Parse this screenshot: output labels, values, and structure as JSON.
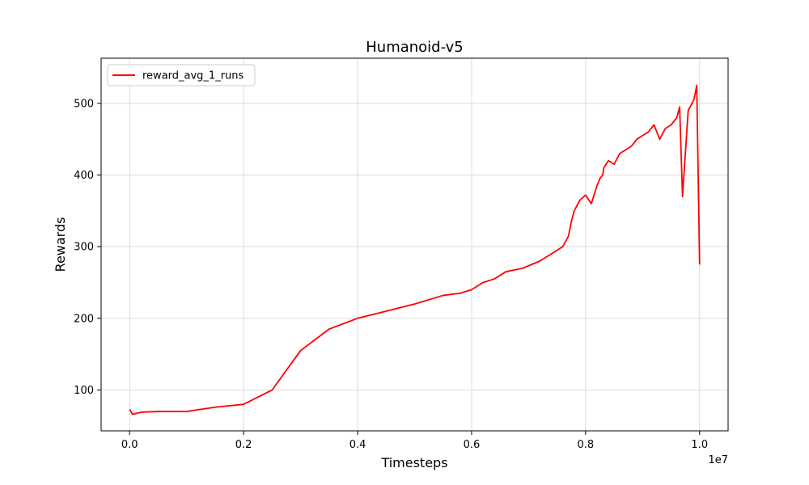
{
  "chart_data": {
    "type": "line",
    "title": "Humanoid-v5",
    "xlabel": "Timesteps",
    "ylabel": "Rewards",
    "x_offset_label": "1e7",
    "xlim": [
      -0.05,
      1.05
    ],
    "ylim": [
      43,
      563
    ],
    "xticks": [
      0.0,
      0.2,
      0.4,
      0.6,
      0.8,
      1.0
    ],
    "xtick_labels": [
      "0.0",
      "0.2",
      "0.4",
      "0.6",
      "0.8",
      "1.0"
    ],
    "yticks": [
      100,
      200,
      300,
      400,
      500
    ],
    "ytick_labels": [
      "100",
      "200",
      "300",
      "400",
      "500"
    ],
    "grid": true,
    "legend_position": "top-left",
    "line_color": "#ff0000",
    "band_color": "#ffdede",
    "series": [
      {
        "name": "reward_avg_1_runs",
        "x": [
          0.0,
          0.005,
          0.02,
          0.05,
          0.1,
          0.15,
          0.2,
          0.25,
          0.3,
          0.35,
          0.4,
          0.45,
          0.5,
          0.55,
          0.58,
          0.6,
          0.62,
          0.64,
          0.66,
          0.69,
          0.72,
          0.74,
          0.76,
          0.77,
          0.775,
          0.78,
          0.79,
          0.8,
          0.81,
          0.82,
          0.825,
          0.83,
          0.832,
          0.84,
          0.85,
          0.86,
          0.87,
          0.88,
          0.89,
          0.9,
          0.91,
          0.92,
          0.93,
          0.94,
          0.95,
          0.96,
          0.965,
          0.97,
          0.98,
          0.99,
          0.995,
          1.0
        ],
        "values": [
          73,
          66,
          69,
          70,
          70,
          76,
          80,
          100,
          155,
          185,
          200,
          210,
          220,
          232,
          235,
          240,
          250,
          255,
          265,
          270,
          280,
          290,
          300,
          315,
          335,
          350,
          365,
          372,
          360,
          385,
          395,
          400,
          410,
          420,
          415,
          430,
          435,
          440,
          450,
          455,
          460,
          470,
          450,
          465,
          470,
          480,
          495,
          370,
          490,
          505,
          525,
          275
        ],
        "lower": [],
        "upper": []
      }
    ]
  }
}
